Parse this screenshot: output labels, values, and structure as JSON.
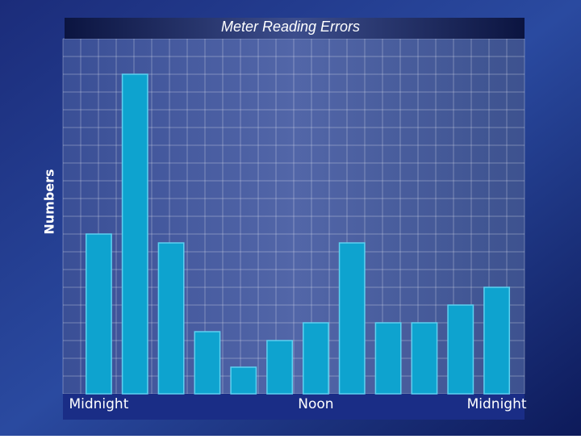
{
  "chart_data": {
    "type": "bar",
    "title": "Meter Reading Errors",
    "y_label": "Numbers",
    "categories": [
      "Midnight",
      null,
      null,
      null,
      null,
      null,
      "Noon",
      null,
      null,
      null,
      null,
      "Midnight"
    ],
    "values": [
      9,
      18,
      8.5,
      3.5,
      1.5,
      3,
      4,
      8.5,
      4,
      4,
      5,
      6
    ],
    "color": "#0ea3cf",
    "ylim": [
      0,
      20
    ],
    "grid": true
  }
}
